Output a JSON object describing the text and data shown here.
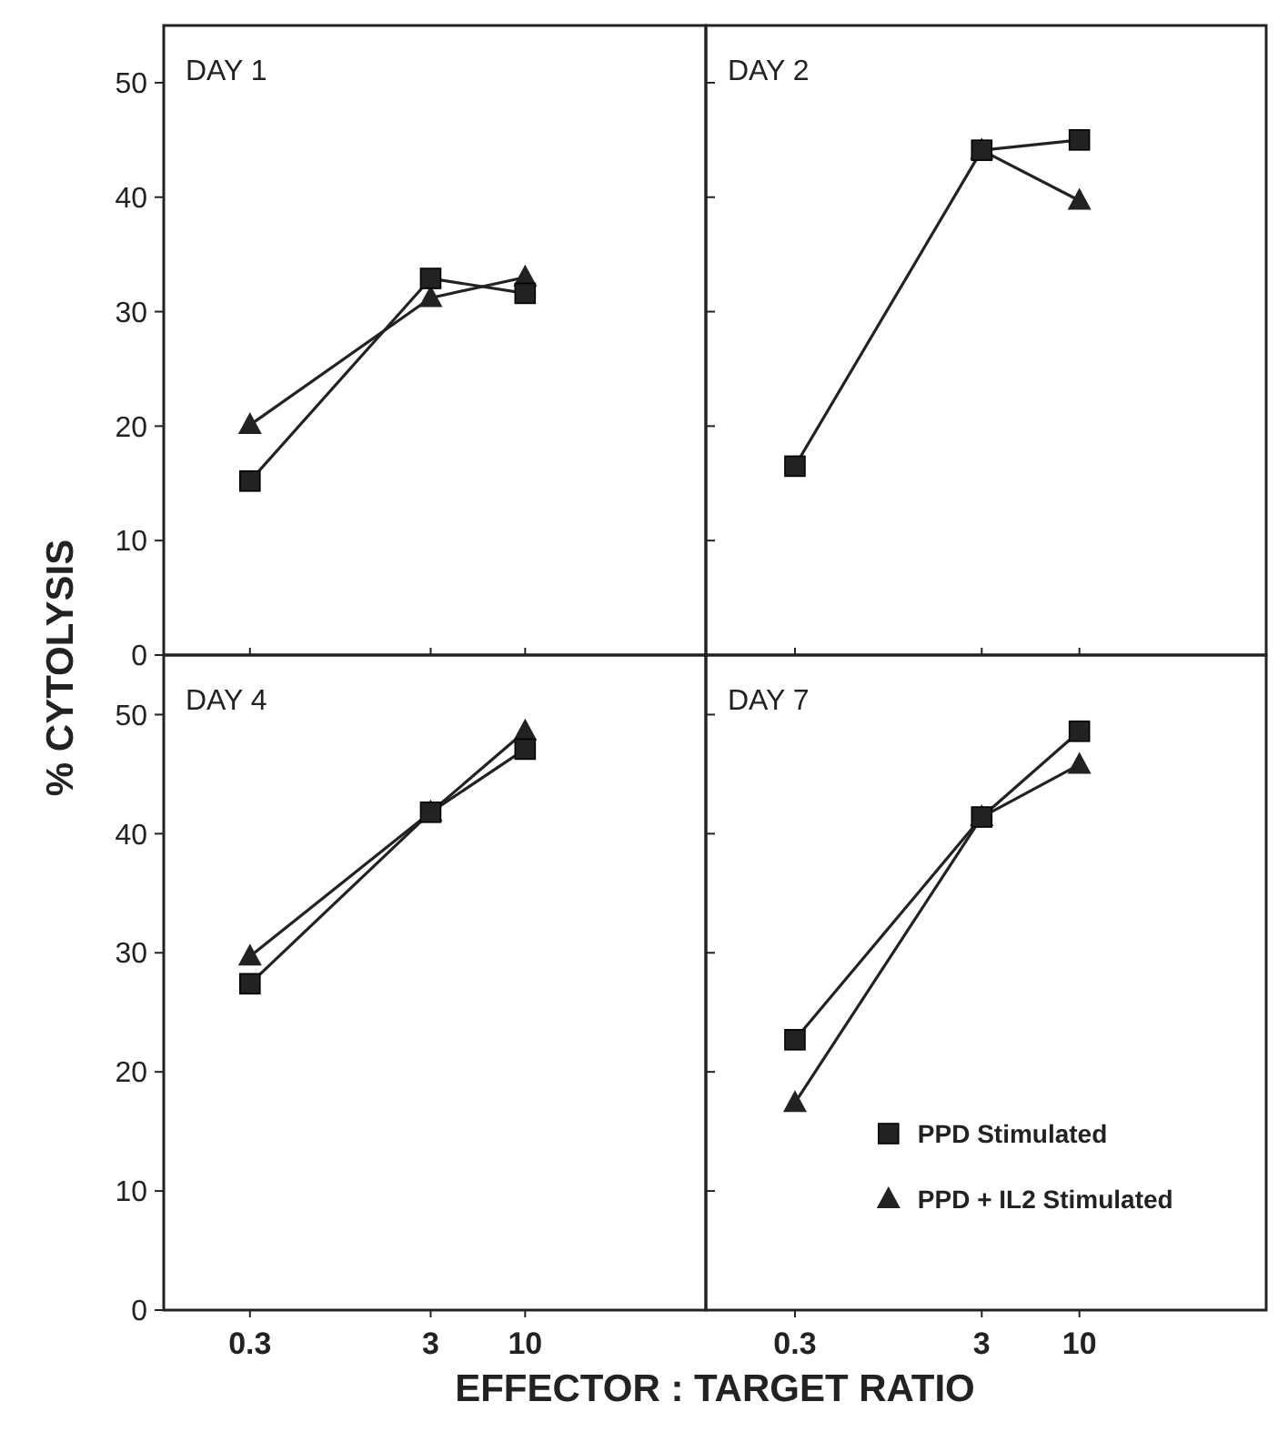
{
  "chart_data": [
    {
      "type": "line",
      "title": "DAY 1",
      "ylabel": "% CYTOLYSIS",
      "x": [
        0.3,
        3,
        10
      ],
      "log": "x",
      "xlim": [
        0.1,
        100
      ],
      "xticks": [
        0.3,
        3,
        10
      ],
      "ylim": [
        0,
        55
      ],
      "yticks": [
        0,
        10,
        20,
        30,
        40,
        50
      ],
      "tick_labels": "y",
      "line_style": "solid",
      "series": [
        {
          "color": "#222222",
          "marker": "square",
          "values": [
            15.2,
            32.9,
            31.6
          ]
        },
        {
          "color": "#222222",
          "marker": "triangle",
          "values": [
            20.1,
            31.2,
            33
          ]
        }
      ]
    },
    {
      "type": "line",
      "title": "DAY 2",
      "x": [
        0.3,
        3,
        10
      ],
      "log": "x",
      "xlim": [
        0.1,
        100
      ],
      "xticks": [
        0.3,
        3,
        10
      ],
      "ylim": [
        0,
        55
      ],
      "yticks": [
        0,
        10,
        20,
        30,
        40,
        50
      ],
      "tick_labels": false,
      "line_style": "solid",
      "series": [
        {
          "color": "#222222",
          "marker": "square",
          "values": [
            16.5,
            44.1,
            45
          ]
        },
        {
          "color": "#222222",
          "marker": "triangle",
          "values": [
            null,
            44.1,
            39.7
          ]
        }
      ]
    },
    {
      "type": "line",
      "title": "DAY 4",
      "xlabel": "EFFECTOR : TARGET RATIO",
      "x": [
        0.3,
        3,
        10
      ],
      "log": "x",
      "xlim": [
        0.1,
        100
      ],
      "xticks": [
        0.3,
        3,
        10
      ],
      "ylim": [
        0,
        55
      ],
      "yticks": [
        0,
        10,
        20,
        30,
        40,
        50
      ],
      "line_style": "solid",
      "series": [
        {
          "color": "#222222",
          "marker": "square",
          "values": [
            27.4,
            41.8,
            47.1
          ]
        },
        {
          "color": "#222222",
          "marker": "triangle",
          "values": [
            29.7,
            41.8,
            48.6
          ]
        }
      ]
    },
    {
      "type": "line",
      "title": "DAY 7",
      "x": [
        0.3,
        3,
        10
      ],
      "log": "x",
      "xlim": [
        0.1,
        100
      ],
      "xticks": [
        0.3,
        3,
        10
      ],
      "ylim": [
        0,
        55
      ],
      "yticks": [
        0,
        10,
        20,
        30,
        40,
        50
      ],
      "tick_labels": "x",
      "legend": "bottom right",
      "line_style": "solid",
      "series": [
        {
          "name": "PPD Stimulated",
          "color": "#222222",
          "marker": "square",
          "values": [
            22.7,
            41.4,
            48.6
          ]
        },
        {
          "name": "PPD + IL2 Stimulated",
          "color": "#222222",
          "marker": "triangle",
          "values": [
            17.4,
            41.4,
            45.8
          ]
        }
      ]
    }
  ]
}
